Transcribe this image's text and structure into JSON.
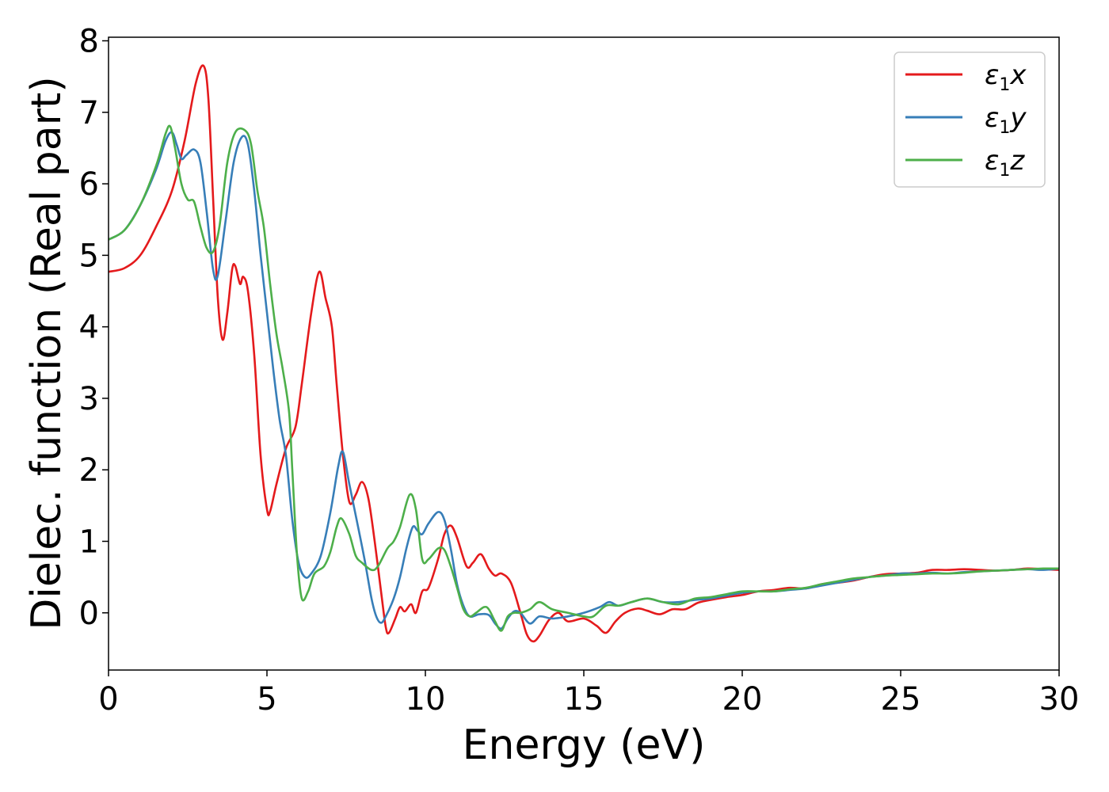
{
  "chart_data": {
    "type": "line",
    "xlabel": "Energy (eV)",
    "ylabel": "Dielec. function (Real part)",
    "xlim": [
      0,
      30
    ],
    "ylim": [
      -0.8,
      8.05
    ],
    "xticks": [
      0,
      5,
      10,
      15,
      20,
      25,
      30
    ],
    "yticks": [
      0,
      1,
      2,
      3,
      4,
      5,
      6,
      7,
      8
    ],
    "grid": false,
    "legend_position": "top-right",
    "series": [
      {
        "name": "ε1x",
        "legend_base": "ε",
        "legend_sub": "1",
        "legend_var": "x",
        "color": "#e41a1c",
        "points": [
          [
            0,
            4.77
          ],
          [
            0.5,
            4.82
          ],
          [
            1.0,
            5.0
          ],
          [
            1.5,
            5.4
          ],
          [
            2.0,
            5.9
          ],
          [
            2.4,
            6.6
          ],
          [
            2.75,
            7.4
          ],
          [
            3.0,
            7.65
          ],
          [
            3.15,
            7.2
          ],
          [
            3.3,
            5.8
          ],
          [
            3.45,
            4.4
          ],
          [
            3.6,
            3.82
          ],
          [
            3.75,
            4.2
          ],
          [
            3.9,
            4.8
          ],
          [
            4.0,
            4.85
          ],
          [
            4.15,
            4.6
          ],
          [
            4.25,
            4.7
          ],
          [
            4.4,
            4.5
          ],
          [
            4.6,
            3.6
          ],
          [
            4.8,
            2.2
          ],
          [
            5.0,
            1.45
          ],
          [
            5.1,
            1.42
          ],
          [
            5.3,
            1.8
          ],
          [
            5.6,
            2.3
          ],
          [
            5.9,
            2.6
          ],
          [
            6.1,
            3.2
          ],
          [
            6.4,
            4.2
          ],
          [
            6.65,
            4.77
          ],
          [
            6.85,
            4.4
          ],
          [
            7.05,
            4.0
          ],
          [
            7.2,
            3.2
          ],
          [
            7.4,
            2.2
          ],
          [
            7.6,
            1.55
          ],
          [
            7.8,
            1.65
          ],
          [
            8.0,
            1.83
          ],
          [
            8.2,
            1.6
          ],
          [
            8.4,
            1.0
          ],
          [
            8.6,
            0.3
          ],
          [
            8.75,
            -0.2
          ],
          [
            8.85,
            -0.28
          ],
          [
            9.05,
            -0.08
          ],
          [
            9.2,
            0.08
          ],
          [
            9.35,
            0.02
          ],
          [
            9.55,
            0.12
          ],
          [
            9.7,
            0.0
          ],
          [
            9.9,
            0.3
          ],
          [
            10.1,
            0.35
          ],
          [
            10.4,
            0.75
          ],
          [
            10.6,
            1.1
          ],
          [
            10.8,
            1.22
          ],
          [
            11.0,
            1.05
          ],
          [
            11.3,
            0.65
          ],
          [
            11.5,
            0.7
          ],
          [
            11.75,
            0.82
          ],
          [
            12.0,
            0.62
          ],
          [
            12.2,
            0.52
          ],
          [
            12.4,
            0.55
          ],
          [
            12.7,
            0.42
          ],
          [
            13.0,
            0.0
          ],
          [
            13.2,
            -0.3
          ],
          [
            13.4,
            -0.4
          ],
          [
            13.6,
            -0.32
          ],
          [
            13.9,
            -0.1
          ],
          [
            14.2,
            0.0
          ],
          [
            14.5,
            -0.12
          ],
          [
            15.0,
            -0.08
          ],
          [
            15.4,
            -0.18
          ],
          [
            15.7,
            -0.28
          ],
          [
            16.0,
            -0.12
          ],
          [
            16.3,
            0.0
          ],
          [
            16.7,
            0.06
          ],
          [
            17.0,
            0.03
          ],
          [
            17.4,
            -0.02
          ],
          [
            17.8,
            0.05
          ],
          [
            18.2,
            0.05
          ],
          [
            18.6,
            0.14
          ],
          [
            19.0,
            0.18
          ],
          [
            19.5,
            0.22
          ],
          [
            20.0,
            0.25
          ],
          [
            20.5,
            0.3
          ],
          [
            21.0,
            0.32
          ],
          [
            21.5,
            0.35
          ],
          [
            22.0,
            0.34
          ],
          [
            22.5,
            0.4
          ],
          [
            23.0,
            0.42
          ],
          [
            23.5,
            0.45
          ],
          [
            24.0,
            0.5
          ],
          [
            24.5,
            0.54
          ],
          [
            25.0,
            0.55
          ],
          [
            25.5,
            0.56
          ],
          [
            26.0,
            0.6
          ],
          [
            26.5,
            0.6
          ],
          [
            27.0,
            0.61
          ],
          [
            27.5,
            0.6
          ],
          [
            28.0,
            0.59
          ],
          [
            28.5,
            0.6
          ],
          [
            29.0,
            0.62
          ],
          [
            29.5,
            0.61
          ],
          [
            30.0,
            0.6
          ]
        ]
      },
      {
        "name": "ε1y",
        "legend_base": "ε",
        "legend_sub": "1",
        "legend_var": "y",
        "color": "#377eb8",
        "points": [
          [
            0,
            5.22
          ],
          [
            0.5,
            5.35
          ],
          [
            1.0,
            5.7
          ],
          [
            1.5,
            6.2
          ],
          [
            1.8,
            6.6
          ],
          [
            2.0,
            6.72
          ],
          [
            2.15,
            6.55
          ],
          [
            2.3,
            6.35
          ],
          [
            2.45,
            6.4
          ],
          [
            2.7,
            6.48
          ],
          [
            2.9,
            6.3
          ],
          [
            3.1,
            5.6
          ],
          [
            3.3,
            4.8
          ],
          [
            3.45,
            4.72
          ],
          [
            3.7,
            5.5
          ],
          [
            3.95,
            6.3
          ],
          [
            4.2,
            6.65
          ],
          [
            4.4,
            6.55
          ],
          [
            4.6,
            5.9
          ],
          [
            4.8,
            5.0
          ],
          [
            5.0,
            4.2
          ],
          [
            5.2,
            3.4
          ],
          [
            5.4,
            2.7
          ],
          [
            5.6,
            2.2
          ],
          [
            5.8,
            1.3
          ],
          [
            6.0,
            0.7
          ],
          [
            6.2,
            0.5
          ],
          [
            6.4,
            0.55
          ],
          [
            6.7,
            0.8
          ],
          [
            7.0,
            1.4
          ],
          [
            7.25,
            2.05
          ],
          [
            7.4,
            2.25
          ],
          [
            7.6,
            1.8
          ],
          [
            7.9,
            1.15
          ],
          [
            8.1,
            0.7
          ],
          [
            8.3,
            0.2
          ],
          [
            8.45,
            -0.05
          ],
          [
            8.6,
            -0.14
          ],
          [
            8.75,
            -0.05
          ],
          [
            9.0,
            0.2
          ],
          [
            9.2,
            0.5
          ],
          [
            9.4,
            0.9
          ],
          [
            9.6,
            1.2
          ],
          [
            9.75,
            1.15
          ],
          [
            9.9,
            1.1
          ],
          [
            10.1,
            1.25
          ],
          [
            10.4,
            1.41
          ],
          [
            10.6,
            1.3
          ],
          [
            10.8,
            0.9
          ],
          [
            11.0,
            0.4
          ],
          [
            11.2,
            0.1
          ],
          [
            11.4,
            -0.05
          ],
          [
            11.7,
            -0.02
          ],
          [
            12.0,
            -0.03
          ],
          [
            12.2,
            -0.15
          ],
          [
            12.4,
            -0.22
          ],
          [
            12.6,
            -0.08
          ],
          [
            12.8,
            0.02
          ],
          [
            13.0,
            0.0
          ],
          [
            13.3,
            -0.15
          ],
          [
            13.6,
            -0.05
          ],
          [
            14.0,
            -0.08
          ],
          [
            14.5,
            -0.05
          ],
          [
            15.0,
            0.0
          ],
          [
            15.5,
            0.08
          ],
          [
            15.8,
            0.15
          ],
          [
            16.1,
            0.1
          ],
          [
            16.5,
            0.15
          ],
          [
            17.0,
            0.2
          ],
          [
            17.5,
            0.15
          ],
          [
            18.0,
            0.15
          ],
          [
            18.5,
            0.18
          ],
          [
            19.0,
            0.2
          ],
          [
            19.5,
            0.24
          ],
          [
            20.0,
            0.28
          ],
          [
            20.5,
            0.3
          ],
          [
            21.0,
            0.3
          ],
          [
            21.5,
            0.32
          ],
          [
            22.0,
            0.34
          ],
          [
            22.5,
            0.38
          ],
          [
            23.0,
            0.42
          ],
          [
            23.5,
            0.46
          ],
          [
            24.0,
            0.5
          ],
          [
            24.5,
            0.52
          ],
          [
            25.0,
            0.55
          ],
          [
            25.5,
            0.55
          ],
          [
            26.0,
            0.56
          ],
          [
            26.5,
            0.55
          ],
          [
            27.0,
            0.57
          ],
          [
            27.5,
            0.58
          ],
          [
            28.0,
            0.59
          ],
          [
            28.5,
            0.6
          ],
          [
            29.0,
            0.61
          ],
          [
            29.5,
            0.6
          ],
          [
            30.0,
            0.62
          ]
        ]
      },
      {
        "name": "ε1z",
        "legend_base": "ε",
        "legend_sub": "1",
        "legend_var": "z",
        "color": "#4daf4a",
        "points": [
          [
            0,
            5.22
          ],
          [
            0.5,
            5.35
          ],
          [
            1.0,
            5.7
          ],
          [
            1.5,
            6.25
          ],
          [
            1.8,
            6.7
          ],
          [
            1.95,
            6.8
          ],
          [
            2.1,
            6.5
          ],
          [
            2.3,
            6.0
          ],
          [
            2.5,
            5.78
          ],
          [
            2.7,
            5.75
          ],
          [
            2.9,
            5.4
          ],
          [
            3.1,
            5.1
          ],
          [
            3.3,
            5.05
          ],
          [
            3.5,
            5.4
          ],
          [
            3.75,
            6.3
          ],
          [
            4.0,
            6.72
          ],
          [
            4.3,
            6.75
          ],
          [
            4.5,
            6.55
          ],
          [
            4.7,
            5.9
          ],
          [
            4.9,
            5.4
          ],
          [
            5.1,
            4.6
          ],
          [
            5.3,
            3.9
          ],
          [
            5.5,
            3.4
          ],
          [
            5.7,
            2.8
          ],
          [
            5.8,
            2.0
          ],
          [
            5.95,
            0.8
          ],
          [
            6.1,
            0.2
          ],
          [
            6.3,
            0.3
          ],
          [
            6.5,
            0.55
          ],
          [
            6.8,
            0.65
          ],
          [
            7.0,
            0.85
          ],
          [
            7.2,
            1.2
          ],
          [
            7.35,
            1.32
          ],
          [
            7.6,
            1.1
          ],
          [
            7.8,
            0.8
          ],
          [
            8.0,
            0.7
          ],
          [
            8.3,
            0.6
          ],
          [
            8.5,
            0.65
          ],
          [
            8.8,
            0.9
          ],
          [
            9.0,
            1.0
          ],
          [
            9.2,
            1.2
          ],
          [
            9.5,
            1.65
          ],
          [
            9.7,
            1.45
          ],
          [
            9.9,
            0.75
          ],
          [
            10.1,
            0.75
          ],
          [
            10.4,
            0.9
          ],
          [
            10.6,
            0.88
          ],
          [
            10.8,
            0.65
          ],
          [
            11.0,
            0.35
          ],
          [
            11.2,
            0.05
          ],
          [
            11.4,
            -0.05
          ],
          [
            11.6,
            0.0
          ],
          [
            11.85,
            0.08
          ],
          [
            12.0,
            0.05
          ],
          [
            12.2,
            -0.12
          ],
          [
            12.4,
            -0.25
          ],
          [
            12.6,
            -0.05
          ],
          [
            12.8,
            0.0
          ],
          [
            13.0,
            0.0
          ],
          [
            13.3,
            0.05
          ],
          [
            13.6,
            0.15
          ],
          [
            14.0,
            0.05
          ],
          [
            14.5,
            0.0
          ],
          [
            15.0,
            -0.05
          ],
          [
            15.3,
            -0.05
          ],
          [
            15.7,
            0.1
          ],
          [
            16.1,
            0.1
          ],
          [
            16.5,
            0.15
          ],
          [
            17.0,
            0.2
          ],
          [
            17.5,
            0.15
          ],
          [
            18.0,
            0.12
          ],
          [
            18.5,
            0.2
          ],
          [
            19.0,
            0.22
          ],
          [
            19.5,
            0.26
          ],
          [
            20.0,
            0.3
          ],
          [
            20.5,
            0.3
          ],
          [
            21.0,
            0.3
          ],
          [
            21.5,
            0.33
          ],
          [
            22.0,
            0.35
          ],
          [
            22.5,
            0.4
          ],
          [
            23.0,
            0.44
          ],
          [
            23.5,
            0.48
          ],
          [
            24.0,
            0.5
          ],
          [
            24.5,
            0.52
          ],
          [
            25.0,
            0.53
          ],
          [
            25.5,
            0.54
          ],
          [
            26.0,
            0.55
          ],
          [
            26.5,
            0.55
          ],
          [
            27.0,
            0.56
          ],
          [
            27.5,
            0.58
          ],
          [
            28.0,
            0.59
          ],
          [
            28.5,
            0.6
          ],
          [
            29.0,
            0.61
          ],
          [
            29.5,
            0.62
          ],
          [
            30.0,
            0.62
          ]
        ]
      }
    ]
  }
}
